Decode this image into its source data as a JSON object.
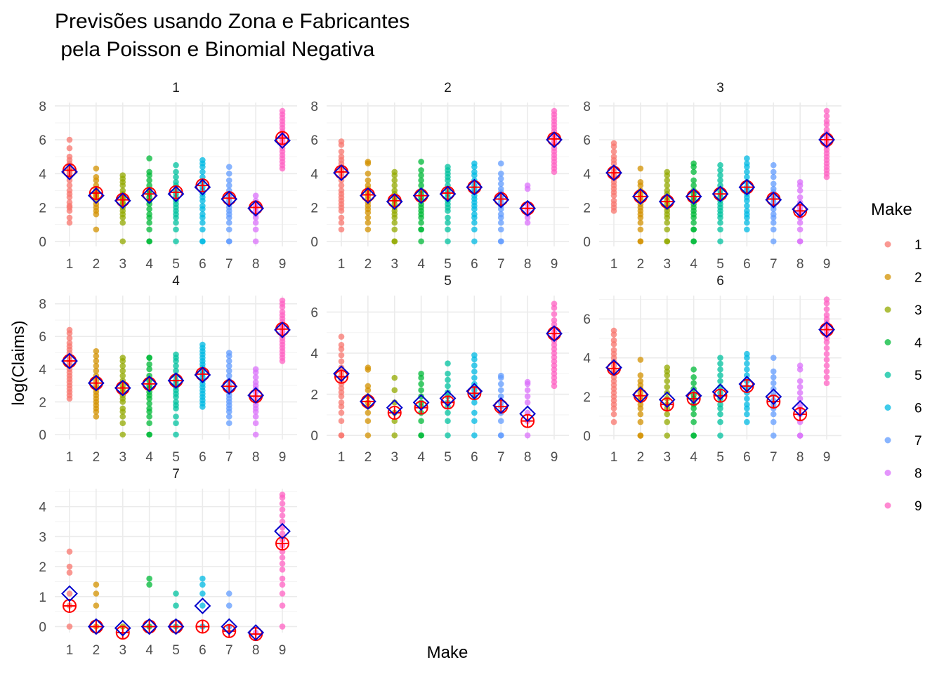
{
  "chart_data": {
    "type": "scatter",
    "title": [
      "Previsões usando Zona e Fabricantes",
      " pela Poisson e Binomial Negativa"
    ],
    "xlabel": "Make",
    "ylabel": "log(Claims)",
    "categories": [
      "1",
      "2",
      "3",
      "4",
      "5",
      "6",
      "7",
      "8",
      "9"
    ],
    "legend": {
      "title": "Make",
      "position": "right",
      "entries": [
        "1",
        "2",
        "3",
        "4",
        "5",
        "6",
        "7",
        "8",
        "9"
      ]
    },
    "colors": [
      "#F8766D",
      "#D39200",
      "#93AA00",
      "#00BA38",
      "#00C19F",
      "#00B9E3",
      "#619CFF",
      "#DB72FB",
      "#FF61C3"
    ],
    "prediction_colors": {
      "poisson": "#FF0000",
      "binomial_negativa": "#0000CC"
    },
    "grid": true,
    "facets": [
      {
        "label": "1",
        "ylim": [
          -0.3,
          8.2
        ],
        "yticks": [
          0,
          2,
          4,
          6,
          8
        ],
        "poisson": [
          4.2,
          2.85,
          2.45,
          2.8,
          2.9,
          3.3,
          2.55,
          2.0,
          6.1
        ],
        "negbin": [
          4.1,
          2.7,
          2.4,
          2.7,
          2.8,
          3.2,
          2.5,
          1.95,
          5.95
        ]
      },
      {
        "label": "2",
        "ylim": [
          -0.3,
          8.2
        ],
        "yticks": [
          0,
          2,
          4,
          6,
          8
        ],
        "poisson": [
          4.1,
          2.75,
          2.4,
          2.7,
          2.85,
          3.2,
          2.5,
          1.95,
          6.05
        ],
        "negbin": [
          4.05,
          2.7,
          2.35,
          2.7,
          2.8,
          3.2,
          2.45,
          1.95,
          6.0
        ]
      },
      {
        "label": "3",
        "ylim": [
          -0.3,
          8.2
        ],
        "yticks": [
          0,
          2,
          4,
          6,
          8
        ],
        "poisson": [
          4.05,
          2.65,
          2.35,
          2.65,
          2.8,
          3.2,
          2.5,
          1.8,
          6.0
        ],
        "negbin": [
          4.05,
          2.65,
          2.35,
          2.65,
          2.8,
          3.2,
          2.45,
          1.9,
          6.0
        ]
      },
      {
        "label": "4",
        "ylim": [
          -0.3,
          8.5
        ],
        "yticks": [
          0,
          2,
          4,
          6,
          8
        ],
        "poisson": [
          4.5,
          3.15,
          2.85,
          3.1,
          3.3,
          3.7,
          2.95,
          2.35,
          6.45
        ],
        "negbin": [
          4.5,
          3.15,
          2.85,
          3.1,
          3.3,
          3.65,
          2.95,
          2.4,
          6.4
        ]
      },
      {
        "label": "5",
        "ylim": [
          -0.2,
          6.8
        ],
        "yticks": [
          0,
          2,
          4,
          6
        ],
        "poisson": [
          2.85,
          1.65,
          1.1,
          1.35,
          1.6,
          2.05,
          1.4,
          0.7,
          4.95
        ],
        "negbin": [
          3.0,
          1.65,
          1.35,
          1.6,
          1.8,
          2.15,
          1.45,
          1.05,
          4.95
        ]
      },
      {
        "label": "6",
        "ylim": [
          -0.2,
          7.2
        ],
        "yticks": [
          0,
          2,
          4,
          6
        ],
        "poisson": [
          3.45,
          2.05,
          1.6,
          1.9,
          2.05,
          2.55,
          1.75,
          1.1,
          5.45
        ],
        "negbin": [
          3.5,
          2.1,
          1.85,
          2.05,
          2.25,
          2.65,
          2.0,
          1.4,
          5.45
        ]
      },
      {
        "label": "7",
        "ylim": [
          -0.2,
          4.6
        ],
        "yticks": [
          0,
          1,
          2,
          3,
          4
        ],
        "poisson": [
          0.69,
          0.0,
          -0.2,
          0.0,
          0.0,
          0.0,
          -0.15,
          -0.25,
          2.77
        ],
        "negbin": [
          1.1,
          0.0,
          -0.05,
          0.0,
          0.0,
          0.69,
          0.0,
          -0.2,
          3.18
        ]
      }
    ],
    "observed": [
      [
        [
          6.0,
          5.5,
          5.0,
          4.8,
          4.6,
          4.4,
          4.3,
          4.2,
          4.1,
          4.0,
          3.9,
          3.8,
          3.6,
          3.3,
          3.0,
          2.8,
          2.6,
          2.3,
          2.1,
          2.0,
          1.8,
          1.4,
          1.1
        ],
        [
          4.3,
          3.8,
          3.6,
          3.3,
          3.1,
          2.9,
          2.8,
          2.7,
          2.6,
          2.4,
          2.2,
          2.0,
          1.8,
          1.6,
          0.7
        ],
        [
          3.9,
          3.7,
          3.5,
          3.3,
          3.0,
          2.8,
          2.6,
          2.5,
          2.3,
          2.2,
          2.0,
          1.8,
          1.6,
          1.4,
          1.1,
          0.0
        ],
        [
          4.9,
          4.1,
          3.9,
          3.6,
          3.3,
          3.0,
          2.8,
          2.6,
          2.4,
          2.2,
          1.9,
          1.6,
          1.4,
          1.1,
          0.7,
          0.0,
          0.0
        ],
        [
          4.5,
          4.1,
          3.8,
          3.5,
          3.3,
          3.0,
          2.8,
          2.6,
          2.4,
          2.2,
          2.0,
          1.8,
          1.6,
          1.4,
          1.1,
          0.7,
          0.0
        ],
        [
          4.8,
          4.6,
          4.4,
          4.1,
          3.8,
          3.5,
          3.2,
          3.0,
          2.8,
          2.6,
          2.4,
          2.1,
          1.9,
          1.6,
          1.4,
          1.1,
          0.7,
          0.0,
          0.0
        ],
        [
          4.4,
          4.0,
          3.6,
          3.3,
          3.0,
          2.8,
          2.6,
          2.4,
          2.2,
          2.0,
          1.8,
          1.6,
          1.4,
          1.1,
          0.7,
          0.0,
          0.0
        ],
        [
          2.7,
          2.4,
          2.2,
          2.0,
          1.8,
          1.6,
          1.4,
          1.1,
          0.7,
          0.0
        ],
        [
          7.7,
          7.5,
          7.3,
          7.1,
          6.9,
          6.7,
          6.5,
          6.3,
          6.1,
          5.9,
          5.7,
          5.5,
          5.3,
          5.1,
          4.9,
          4.7,
          4.5,
          4.3
        ]
      ],
      [
        [
          5.9,
          5.7,
          5.3,
          5.0,
          4.8,
          4.6,
          4.4,
          4.2,
          4.0,
          3.8,
          3.6,
          3.3,
          3.0,
          2.8,
          2.6,
          2.4,
          2.2,
          2.0,
          1.8,
          1.4,
          1.1,
          0.7
        ],
        [
          4.7,
          4.6,
          4.0,
          3.6,
          3.3,
          3.1,
          2.9,
          2.7,
          2.5,
          2.3,
          2.1,
          1.9,
          1.7,
          1.4,
          1.1,
          0.7
        ],
        [
          4.1,
          3.9,
          3.6,
          3.3,
          3.0,
          2.8,
          2.6,
          2.4,
          2.2,
          2.0,
          1.8,
          1.6,
          1.4,
          1.1,
          0.7,
          0.0,
          0.0
        ],
        [
          4.7,
          4.2,
          3.9,
          3.6,
          3.3,
          3.0,
          2.8,
          2.6,
          2.4,
          2.2,
          2.0,
          1.8,
          1.6,
          1.4,
          1.1,
          0.7,
          0.7,
          0.0
        ],
        [
          4.4,
          4.2,
          4.0,
          3.8,
          3.6,
          3.3,
          3.0,
          2.8,
          2.6,
          2.4,
          2.2,
          2.0,
          1.8,
          1.4,
          1.1,
          0.7,
          0.0
        ],
        [
          4.6,
          4.4,
          4.1,
          3.9,
          3.6,
          3.3,
          3.1,
          2.9,
          2.7,
          2.5,
          2.3,
          2.1,
          1.9,
          1.6,
          1.4,
          1.1,
          0.7,
          0.0
        ],
        [
          4.6,
          4.0,
          3.7,
          3.4,
          3.1,
          2.9,
          2.7,
          2.5,
          2.3,
          2.1,
          1.9,
          1.6,
          1.4,
          1.1,
          0.7,
          0.0,
          0.0
        ],
        [
          3.3,
          3.1,
          2.2,
          1.9,
          1.6,
          1.4,
          1.1
        ],
        [
          7.7,
          7.5,
          7.3,
          7.1,
          6.9,
          6.7,
          6.5,
          6.3,
          6.1,
          5.9,
          5.7,
          5.5,
          5.3,
          5.1,
          4.9,
          4.7,
          4.5,
          4.3,
          4.1
        ]
      ],
      [
        [
          5.8,
          5.6,
          5.3,
          5.0,
          4.8,
          4.6,
          4.3,
          4.1,
          3.9,
          3.7,
          3.5,
          3.3,
          3.1,
          2.9,
          2.7,
          2.4,
          2.2,
          2.0,
          1.8
        ],
        [
          4.3,
          3.5,
          3.3,
          3.0,
          2.8,
          2.6,
          2.4,
          2.2,
          2.0,
          1.8,
          1.6,
          1.4,
          1.1,
          0.7,
          0.0,
          0.0
        ],
        [
          4.1,
          3.9,
          3.6,
          3.3,
          3.0,
          2.8,
          2.6,
          2.4,
          2.2,
          2.0,
          1.8,
          1.6,
          1.4,
          1.1,
          0.7,
          0.0,
          0.0
        ],
        [
          4.6,
          4.4,
          4.1,
          3.6,
          3.3,
          3.0,
          2.8,
          2.6,
          2.4,
          2.2,
          2.0,
          1.8,
          1.6,
          1.4,
          1.1,
          0.7,
          0.7,
          0.0,
          0.0
        ],
        [
          4.5,
          4.2,
          3.9,
          3.6,
          3.3,
          3.0,
          2.8,
          2.6,
          2.4,
          2.2,
          2.0,
          1.8,
          1.6,
          1.4,
          1.1,
          0.7,
          0.0
        ],
        [
          4.9,
          4.6,
          4.4,
          4.1,
          3.8,
          3.5,
          3.2,
          3.0,
          2.8,
          2.6,
          2.4,
          2.1,
          1.8,
          1.6,
          1.4,
          1.1,
          0.7
        ],
        [
          4.5,
          4.1,
          3.8,
          3.4,
          3.1,
          2.9,
          2.7,
          2.5,
          2.3,
          2.1,
          1.9,
          1.6,
          1.4,
          1.1,
          0.7,
          0.0
        ],
        [
          3.5,
          3.3,
          3.0,
          2.6,
          2.3,
          2.0,
          1.8,
          1.6,
          1.4,
          1.1,
          0.7,
          0.0,
          0.0
        ],
        [
          7.7,
          7.4,
          7.1,
          6.9,
          6.6,
          6.4,
          6.2,
          6.0,
          5.8,
          5.6,
          5.4,
          5.2,
          5.0,
          4.8,
          4.6,
          4.4,
          4.2,
          4.0,
          3.8
        ]
      ],
      [
        [
          6.4,
          6.2,
          5.9,
          5.6,
          5.4,
          5.2,
          5.0,
          4.8,
          4.6,
          4.4,
          4.2,
          4.0,
          3.8,
          3.6,
          3.4,
          3.2,
          3.0,
          2.8,
          2.6,
          2.4,
          2.2
        ],
        [
          5.1,
          4.8,
          4.5,
          4.2,
          3.9,
          3.6,
          3.3,
          3.0,
          2.8,
          2.6,
          2.4,
          2.2,
          2.0,
          1.8,
          1.6,
          1.4,
          1.1
        ],
        [
          4.7,
          4.5,
          4.2,
          3.9,
          3.6,
          3.3,
          3.0,
          2.8,
          2.6,
          2.4,
          2.2,
          2.0,
          1.6,
          1.4,
          1.1,
          0.7,
          0.0
        ],
        [
          4.7,
          4.7,
          4.3,
          4.0,
          3.6,
          3.3,
          3.0,
          2.8,
          2.6,
          2.4,
          2.2,
          1.9,
          1.6,
          1.4,
          1.1,
          0.7,
          0.0,
          0.0
        ],
        [
          4.9,
          4.7,
          4.5,
          4.2,
          3.9,
          3.6,
          3.3,
          3.1,
          2.9,
          2.7,
          2.5,
          2.3,
          2.0,
          1.8,
          1.6,
          1.1,
          0.7,
          0.0
        ],
        [
          5.5,
          5.3,
          5.1,
          4.9,
          4.7,
          4.5,
          4.3,
          4.1,
          3.9,
          3.7,
          3.5,
          3.3,
          3.1,
          2.9,
          2.7,
          2.5,
          2.3,
          2.1,
          1.9,
          1.7
        ],
        [
          5.0,
          4.8,
          4.5,
          4.2,
          3.9,
          3.6,
          3.3,
          3.0,
          2.8,
          2.6,
          2.4,
          2.2,
          2.0,
          1.8,
          1.6,
          1.4,
          1.1,
          0.7
        ],
        [
          4.0,
          3.8,
          3.5,
          3.2,
          3.0,
          2.8,
          2.6,
          2.3,
          2.0,
          1.8,
          1.6,
          1.4,
          1.1,
          0.7,
          0.0
        ],
        [
          8.2,
          8.0,
          7.8,
          7.5,
          7.3,
          7.1,
          6.9,
          6.7,
          6.5,
          6.3,
          6.1,
          5.9,
          5.7,
          5.5,
          5.3,
          5.1,
          4.9,
          4.7,
          4.5
        ]
      ],
      [
        [
          4.8,
          4.4,
          4.2,
          3.9,
          3.6,
          3.3,
          3.1,
          2.9,
          2.7,
          2.5,
          2.3,
          2.1,
          1.9,
          1.6,
          1.4,
          1.1,
          0.7,
          0.0,
          0.0
        ],
        [
          3.3,
          3.2,
          2.4,
          2.2,
          1.9,
          1.6,
          1.4,
          1.1,
          0.7,
          0.0
        ],
        [
          2.8,
          2.2,
          1.6,
          1.1,
          0.7,
          0.0
        ],
        [
          3.0,
          2.8,
          2.5,
          2.2,
          1.9,
          1.6,
          1.4,
          1.1,
          0.7,
          0.0,
          0.0
        ],
        [
          3.5,
          3.0,
          2.7,
          2.4,
          2.1,
          1.9,
          1.6,
          1.4,
          1.1,
          0.7,
          0.0
        ],
        [
          3.9,
          3.7,
          3.4,
          3.1,
          2.8,
          2.5,
          2.2,
          1.9,
          1.6,
          1.1,
          0.7,
          0.0
        ],
        [
          2.9,
          2.8,
          2.5,
          2.2,
          1.9,
          1.6,
          1.4,
          1.1,
          0.7,
          0.0,
          0.0
        ],
        [
          2.6,
          2.5,
          2.2,
          1.9,
          1.6,
          1.1,
          0.7,
          0.0
        ],
        [
          6.4,
          6.2,
          5.9,
          5.6,
          5.4,
          5.2,
          5.0,
          4.8,
          4.6,
          4.4,
          4.2,
          4.0,
          3.8,
          3.6,
          3.4,
          3.2,
          3.0,
          2.8,
          2.6,
          2.4
        ]
      ],
      [
        [
          5.4,
          5.2,
          4.9,
          4.7,
          4.4,
          4.2,
          4.0,
          3.8,
          3.6,
          3.4,
          3.2,
          3.0,
          2.8,
          2.6,
          2.4,
          2.2,
          2.0,
          1.8,
          1.6,
          1.4,
          1.1,
          0.7
        ],
        [
          3.9,
          3.1,
          2.8,
          2.6,
          2.4,
          2.2,
          2.0,
          1.8,
          1.6,
          1.4,
          1.1,
          0.7,
          0.0,
          0.0
        ],
        [
          3.5,
          3.3,
          3.1,
          2.8,
          2.5,
          2.2,
          1.9,
          1.6,
          1.4,
          1.1,
          0.7,
          0.0
        ],
        [
          3.4,
          3.0,
          2.7,
          2.4,
          2.1,
          1.9,
          1.6,
          1.4,
          1.1,
          0.7,
          0.0,
          0.0
        ],
        [
          4.0,
          3.7,
          3.4,
          3.1,
          2.8,
          2.5,
          2.2,
          1.9,
          1.6,
          1.4,
          1.1,
          0.7,
          0.0
        ],
        [
          4.2,
          4.0,
          3.7,
          3.4,
          3.1,
          2.8,
          2.5,
          2.2,
          1.9,
          1.6,
          1.4,
          1.1,
          0.7
        ],
        [
          4.0,
          3.3,
          3.0,
          2.7,
          2.4,
          2.1,
          1.8,
          1.6,
          1.4,
          1.1,
          0.7,
          0.0
        ],
        [
          3.6,
          3.4,
          2.8,
          2.5,
          2.2,
          1.9,
          1.6,
          1.4,
          1.1,
          0.7,
          0.0,
          0.0
        ],
        [
          7.0,
          6.8,
          6.5,
          6.2,
          6.0,
          5.8,
          5.6,
          5.4,
          5.2,
          5.0,
          4.8,
          4.5,
          4.2,
          3.9,
          3.6,
          3.3,
          3.0,
          2.7
        ]
      ],
      [
        [
          2.5,
          2.0,
          1.8,
          1.1,
          0.7,
          0.0
        ],
        [
          1.4,
          1.1,
          0.7,
          0.0
        ],
        [
          0.0
        ],
        [
          1.6,
          1.4,
          0.0
        ],
        [
          1.1,
          0.7,
          0.0
        ],
        [
          1.6,
          1.4,
          1.1,
          0.7,
          0.0
        ],
        [
          1.1,
          0.7,
          0.0
        ],
        [
          -0.2
        ],
        [
          4.4,
          4.3,
          4.1,
          3.9,
          3.7,
          3.5,
          3.3,
          3.1,
          2.9,
          2.7,
          2.5,
          2.3,
          2.1,
          1.9,
          1.6,
          1.4,
          1.1,
          0.7,
          0.0
        ]
      ]
    ]
  }
}
